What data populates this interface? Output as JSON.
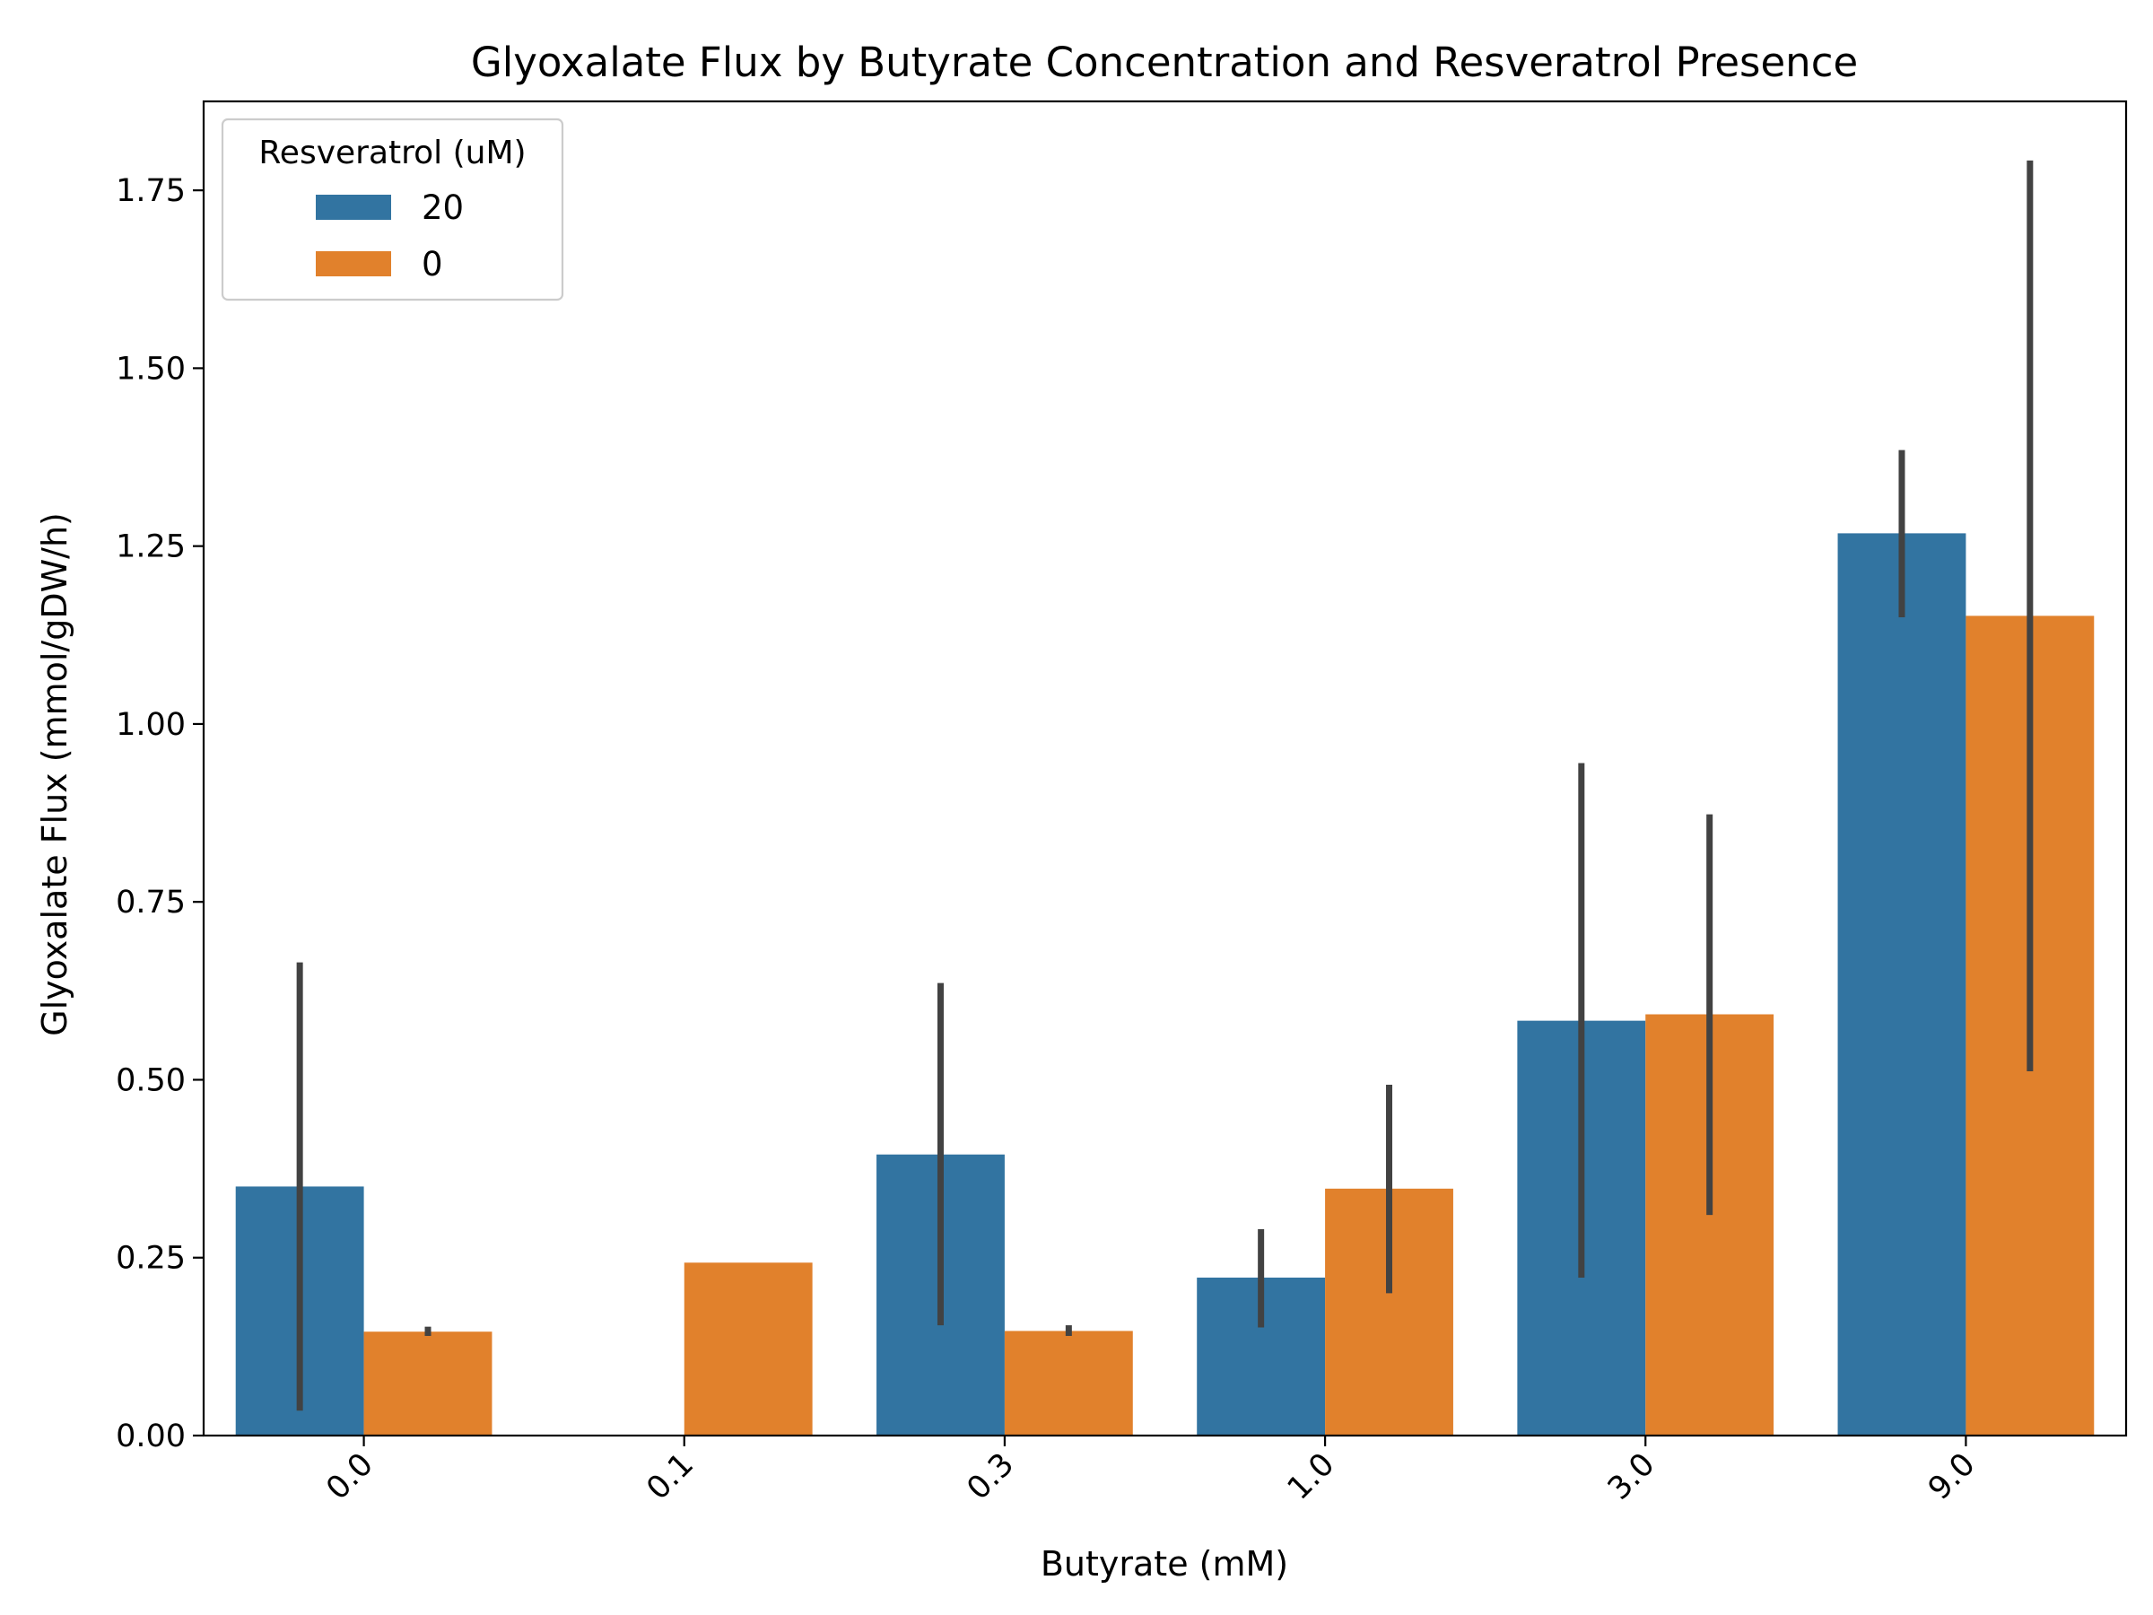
{
  "chart_data": {
    "type": "bar",
    "title": "Glyoxalate Flux by Butyrate Concentration and Resveratrol Presence",
    "xlabel": "Butyrate (mM)",
    "ylabel": "Glyoxalate Flux (mmol/gDW/h)",
    "categories": [
      "0.0",
      "0.1",
      "0.3",
      "1.0",
      "3.0",
      "9.0"
    ],
    "ylim": [
      0,
      1.875
    ],
    "yticks": [
      "0.00",
      "0.25",
      "0.50",
      "0.75",
      "1.00",
      "1.25",
      "1.50",
      "1.75"
    ],
    "ytick_values": [
      0,
      0.25,
      0.5,
      0.75,
      1.0,
      1.25,
      1.5,
      1.75
    ],
    "legend": {
      "title": "Resveratrol (uM)",
      "placement": "upper-left"
    },
    "grid": false,
    "series": [
      {
        "name": "20",
        "color": "#3274a1",
        "values": [
          0.35,
          null,
          0.395,
          0.222,
          0.583,
          1.268
        ],
        "err_low": [
          0.035,
          null,
          0.155,
          0.152,
          0.222,
          1.15
        ],
        "err_high": [
          0.665,
          null,
          0.636,
          0.29,
          0.945,
          1.385
        ]
      },
      {
        "name": "0",
        "color": "#e1812c",
        "values": [
          0.146,
          0.243,
          0.147,
          0.347,
          0.592,
          1.152
        ],
        "err_low": [
          0.14,
          null,
          0.14,
          0.2,
          0.31,
          0.512
        ],
        "err_high": [
          0.153,
          null,
          0.155,
          0.493,
          0.873,
          1.792
        ]
      }
    ]
  }
}
